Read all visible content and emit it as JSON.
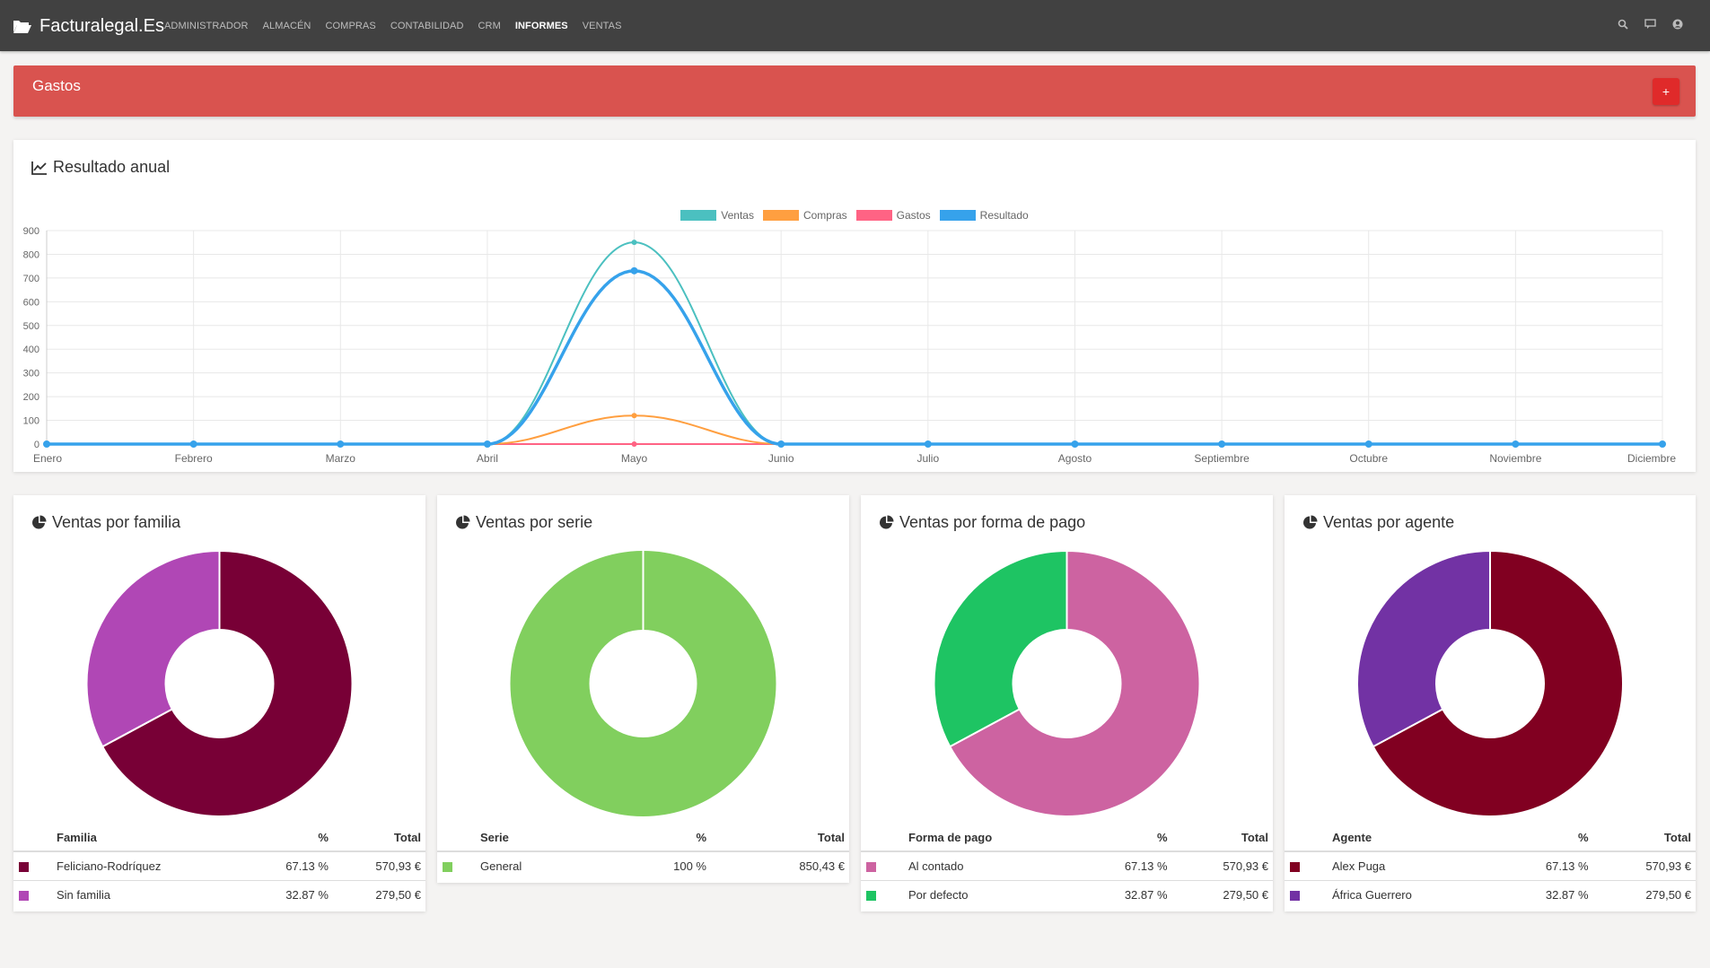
{
  "app": {
    "brand": "Facturalegal.Es",
    "menu": [
      "ADMINISTRADOR",
      "ALMACÉN",
      "COMPRAS",
      "CONTABILIDAD",
      "CRM",
      "INFORMES",
      "VENTAS"
    ],
    "active_menu": "INFORMES",
    "icons": [
      "search-icon",
      "notifications-icon",
      "user-icon"
    ]
  },
  "banner": {
    "title": "Gastos",
    "add_label": "+",
    "color": "#d9534f"
  },
  "annual": {
    "title": "Resultado anual",
    "legend": [
      {
        "name": "Ventas",
        "color": "#4bc0c0"
      },
      {
        "name": "Compras",
        "color": "#ff9f40"
      },
      {
        "name": "Gastos",
        "color": "#ff6384"
      },
      {
        "name": "Resultado",
        "color": "#36a2eb"
      }
    ]
  },
  "chart_data": [
    {
      "type": "line",
      "title": "Resultado anual",
      "categories": [
        "Enero",
        "Febrero",
        "Marzo",
        "Abril",
        "Mayo",
        "Junio",
        "Julio",
        "Agosto",
        "Septiembre",
        "Octubre",
        "Noviembre",
        "Diciembre"
      ],
      "ylim": [
        0,
        900
      ],
      "yticks": [
        0,
        100,
        200,
        300,
        400,
        500,
        600,
        700,
        800,
        900
      ],
      "series": [
        {
          "name": "Ventas",
          "color": "#4bc0c0",
          "values": [
            0,
            0,
            0,
            0,
            850.43,
            0,
            0,
            0,
            0,
            0,
            0,
            0
          ]
        },
        {
          "name": "Compras",
          "color": "#ff9f40",
          "values": [
            0,
            0,
            0,
            0,
            120,
            0,
            0,
            0,
            0,
            0,
            0,
            0
          ]
        },
        {
          "name": "Gastos",
          "color": "#ff6384",
          "values": [
            0,
            0,
            0,
            0,
            0,
            0,
            0,
            0,
            0,
            0,
            0,
            0
          ]
        },
        {
          "name": "Resultado",
          "color": "#36a2eb",
          "values": [
            0,
            0,
            0,
            0,
            730.43,
            0,
            0,
            0,
            0,
            0,
            0,
            0
          ]
        }
      ]
    },
    {
      "type": "pie",
      "title": "Ventas por familia",
      "labels": [
        "Feliciano-Rodríquez",
        "Sin familia"
      ],
      "values": [
        570.93,
        279.5
      ],
      "colors": [
        "#780036",
        "#b047b5"
      ]
    },
    {
      "type": "pie",
      "title": "Ventas por serie",
      "labels": [
        "General"
      ],
      "values": [
        850.43
      ],
      "colors": [
        "#81cf5e"
      ]
    },
    {
      "type": "pie",
      "title": "Ventas por forma de pago",
      "labels": [
        "Al contado",
        "Por defecto"
      ],
      "values": [
        570.93,
        279.5
      ],
      "colors": [
        "#cd63a1",
        "#1ec463"
      ]
    },
    {
      "type": "pie",
      "title": "Ventas por agente",
      "labels": [
        "Alex Puga",
        "África Guerrero"
      ],
      "values": [
        570.93,
        279.5
      ],
      "colors": [
        "#810021",
        "#7232a4"
      ]
    }
  ],
  "panels": [
    {
      "title": "Ventas por familia",
      "headers": [
        "Familia",
        "%",
        "Total"
      ],
      "rows": [
        {
          "color": "#780036",
          "label": "Feliciano-Rodríquez",
          "pct": "67.13 %",
          "total": "570,93 €"
        },
        {
          "color": "#b047b5",
          "label": "Sin familia",
          "pct": "32.87 %",
          "total": "279,50 €"
        }
      ]
    },
    {
      "title": "Ventas por serie",
      "headers": [
        "Serie",
        "%",
        "Total"
      ],
      "rows": [
        {
          "color": "#81cf5e",
          "label": "General",
          "pct": "100 %",
          "total": "850,43 €"
        }
      ]
    },
    {
      "title": "Ventas por forma de pago",
      "headers": [
        "Forma de pago",
        "%",
        "Total"
      ],
      "rows": [
        {
          "color": "#cd63a1",
          "label": "Al contado",
          "pct": "67.13 %",
          "total": "570,93 €"
        },
        {
          "color": "#1ec463",
          "label": "Por defecto",
          "pct": "32.87 %",
          "total": "279,50 €"
        }
      ]
    },
    {
      "title": "Ventas por agente",
      "headers": [
        "Agente",
        "%",
        "Total"
      ],
      "rows": [
        {
          "color": "#810021",
          "label": "Alex Puga",
          "pct": "67.13 %",
          "total": "570,93 €"
        },
        {
          "color": "#7232a4",
          "label": "África Guerrero",
          "pct": "32.87 %",
          "total": "279,50 €"
        }
      ]
    }
  ]
}
